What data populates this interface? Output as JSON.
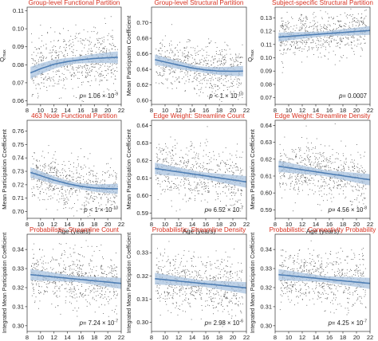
{
  "chart_data": [
    {
      "type": "scatter",
      "title": "Group-level Functional Partition",
      "xlabel": "",
      "ylabel": "Q",
      "ylabel_sub": "max",
      "xlim": [
        8,
        22
      ],
      "ylim": [
        0.058,
        0.112
      ],
      "xticks": [
        8,
        10,
        12,
        14,
        16,
        18,
        20,
        22
      ],
      "xtick_labels": [
        "8",
        "10",
        "12",
        "14",
        "16",
        "18",
        "20",
        "22"
      ],
      "yticks": [
        0.06,
        0.07,
        0.08,
        0.09,
        0.1,
        0.11
      ],
      "ytick_labels": [
        "0.06",
        "0.07",
        "0.08",
        "0.09",
        "0.10",
        "0.11"
      ],
      "fit": {
        "x": [
          8.5,
          10,
          12,
          14,
          16,
          18,
          20,
          21.5
        ],
        "y": [
          0.0755,
          0.0778,
          0.0803,
          0.0818,
          0.0828,
          0.0835,
          0.0839,
          0.0841
        ]
      },
      "scatter_spread": 0.008,
      "annotation": {
        "prefix": "p",
        "value": "= 1.06 × 10",
        "exp": "-9"
      }
    },
    {
      "type": "scatter",
      "title": "Group-level Structural Partition",
      "xlabel": "",
      "ylabel": "Mean Participation Coefficient",
      "xlim": [
        8,
        22
      ],
      "ylim": [
        0.595,
        0.72
      ],
      "xticks": [
        8,
        10,
        12,
        14,
        16,
        18,
        20,
        22
      ],
      "xtick_labels": [
        "8",
        "10",
        "12",
        "14",
        "16",
        "18",
        "20",
        "22"
      ],
      "yticks": [
        0.6,
        0.62,
        0.64,
        0.66,
        0.68,
        0.7
      ],
      "ytick_labels": [
        "0.60",
        "0.62",
        "0.64",
        "0.66",
        "0.68",
        "0.70"
      ],
      "fit": {
        "x": [
          8.5,
          10,
          12,
          14,
          16,
          18,
          20,
          21.5
        ],
        "y": [
          0.6525,
          0.6495,
          0.6455,
          0.6418,
          0.6392,
          0.6378,
          0.6376,
          0.6378
        ]
      },
      "scatter_spread": 0.016,
      "annotation": {
        "prefix": "p",
        "value": " < 1 × 10",
        "exp": "-10"
      }
    },
    {
      "type": "scatter",
      "title": "Subject-specific Structural Partition",
      "xlabel": "",
      "ylabel": "Q",
      "ylabel_sub": "max",
      "xlim": [
        8,
        22
      ],
      "ylim": [
        0.065,
        0.138
      ],
      "xticks": [
        8,
        10,
        12,
        14,
        16,
        18,
        20,
        22
      ],
      "xtick_labels": [
        "8",
        "10",
        "12",
        "14",
        "16",
        "18",
        "20",
        "22"
      ],
      "yticks": [
        0.07,
        0.08,
        0.09,
        0.1,
        0.11,
        0.12,
        0.13
      ],
      "ytick_labels": [
        "0.07",
        "0.08",
        "0.09",
        "0.10",
        "0.11",
        "0.12",
        "0.13"
      ],
      "fit": {
        "x": [
          8.5,
          22
        ],
        "y": [
          0.1155,
          0.1205
        ]
      },
      "scatter_spread": 0.008,
      "annotation": {
        "prefix": "p",
        "value": "= 0.0007",
        "exp": ""
      }
    },
    {
      "type": "scatter",
      "title": "463 Node Functional Partition",
      "xlabel": "Age (years)",
      "ylabel": "Mean Participation Coefficient",
      "xlim": [
        8,
        22
      ],
      "ylim": [
        0.695,
        0.768
      ],
      "xticks": [
        8,
        10,
        12,
        14,
        16,
        18,
        20,
        22
      ],
      "xtick_labels": [
        "8",
        "10",
        "12",
        "14",
        "16",
        "18",
        "20",
        "22"
      ],
      "yticks": [
        0.7,
        0.71,
        0.72,
        0.73,
        0.74,
        0.75,
        0.76
      ],
      "ytick_labels": [
        "0.70",
        "0.71",
        "0.72",
        "0.73",
        "0.74",
        "0.75",
        "0.76"
      ],
      "fit": {
        "x": [
          8.5,
          10,
          12,
          14,
          16,
          18,
          20,
          21.5
        ],
        "y": [
          0.7292,
          0.7268,
          0.7235,
          0.7208,
          0.7188,
          0.7176,
          0.7171,
          0.717
        ]
      },
      "scatter_spread": 0.009,
      "annotation": {
        "prefix": "p",
        "value": " < 1 × 10",
        "exp": "-10"
      }
    },
    {
      "type": "scatter",
      "title": "Edge Weight: Streamline Count",
      "xlabel": "Age (years)",
      "ylabel": "Mean Participation Coefficient",
      "xlim": [
        8,
        22
      ],
      "ylim": [
        0.587,
        0.643
      ],
      "xticks": [
        8,
        10,
        12,
        14,
        16,
        18,
        20,
        22
      ],
      "xtick_labels": [
        "8",
        "10",
        "12",
        "14",
        "16",
        "18",
        "20",
        "22"
      ],
      "yticks": [
        0.59,
        0.6,
        0.61,
        0.62,
        0.63,
        0.64
      ],
      "ytick_labels": [
        "0.59",
        "0.60",
        "0.61",
        "0.62",
        "0.63",
        "0.64"
      ],
      "fit": {
        "x": [
          8.5,
          22
        ],
        "y": [
          0.6155,
          0.6078
        ]
      },
      "scatter_spread": 0.008,
      "annotation": {
        "prefix": "p",
        "value": "= 6.52 × 10",
        "exp": "-7"
      }
    },
    {
      "type": "scatter",
      "title": "Edge Weight: Streamline Density",
      "xlabel": "Age (years)",
      "ylabel": "Mean Participation Coefficient",
      "xlim": [
        8,
        22
      ],
      "ylim": [
        0.585,
        0.643
      ],
      "xticks": [
        8,
        10,
        12,
        14,
        16,
        18,
        20,
        22
      ],
      "xtick_labels": [
        "8",
        "10",
        "12",
        "14",
        "16",
        "18",
        "20",
        "22"
      ],
      "yticks": [
        0.59,
        0.6,
        0.61,
        0.62,
        0.63,
        0.64
      ],
      "ytick_labels": [
        "0.59",
        "0.60",
        "0.61",
        "0.62",
        "0.63",
        "0.64"
      ],
      "fit": {
        "x": [
          8.5,
          22
        ],
        "y": [
          0.6158,
          0.6078
        ]
      },
      "scatter_spread": 0.008,
      "annotation": {
        "prefix": "p",
        "value": "= 4.56 × 10",
        "exp": "-8"
      }
    },
    {
      "type": "scatter",
      "title": "Probabilistic: Streamline Count",
      "xlabel": "Age (years)",
      "ylabel": "Integrated Mean Participation Coefficient",
      "xlim": [
        8,
        22
      ],
      "ylim": [
        0.297,
        0.348
      ],
      "xticks": [
        8,
        10,
        12,
        14,
        16,
        18,
        20,
        22
      ],
      "xtick_labels": [
        "8",
        "10",
        "12",
        "14",
        "16",
        "18",
        "20",
        "22"
      ],
      "yticks": [
        0.3,
        0.31,
        0.32,
        0.33,
        0.34
      ],
      "ytick_labels": [
        "0.30",
        "0.31",
        "0.32",
        "0.33",
        "0.34"
      ],
      "fit": {
        "x": [
          8.5,
          22
        ],
        "y": [
          0.3268,
          0.3222
        ]
      },
      "scatter_spread": 0.007,
      "annotation": {
        "prefix": "p",
        "value": "= 7.24 × 10",
        "exp": "-7"
      }
    },
    {
      "type": "scatter",
      "title": "Probabilistic: Streamline Density",
      "xlabel": "Age (years)",
      "ylabel": "Integrated Mean Participation Coefficient",
      "xlim": [
        8,
        22
      ],
      "ylim": [
        0.296,
        0.338
      ],
      "xticks": [
        8,
        10,
        12,
        14,
        16,
        18,
        20,
        22
      ],
      "xtick_labels": [
        "8",
        "10",
        "12",
        "14",
        "16",
        "18",
        "20",
        "22"
      ],
      "yticks": [
        0.3,
        0.31,
        0.32,
        0.33
      ],
      "ytick_labels": [
        "0.30",
        "0.31",
        "0.32",
        "0.33"
      ],
      "fit": {
        "x": [
          8.5,
          22
        ],
        "y": [
          0.3188,
          0.3148
        ]
      },
      "scatter_spread": 0.006,
      "annotation": {
        "prefix": "p",
        "value": "= 2.98 × 10",
        "exp": "-6"
      }
    },
    {
      "type": "scatter",
      "title": "Probabilistic: Connectivity Probability",
      "xlabel": "Age (years)",
      "ylabel": "Integrated Mean Participation Coefficient",
      "xlim": [
        8,
        22
      ],
      "ylim": [
        0.297,
        0.348
      ],
      "xticks": [
        8,
        10,
        12,
        14,
        16,
        18,
        20,
        22
      ],
      "xtick_labels": [
        "8",
        "10",
        "12",
        "14",
        "16",
        "18",
        "20",
        "22"
      ],
      "yticks": [
        0.3,
        0.31,
        0.32,
        0.33,
        0.34
      ],
      "ytick_labels": [
        "0.30",
        "0.31",
        "0.32",
        "0.33",
        "0.34"
      ],
      "fit": {
        "x": [
          8.5,
          22
        ],
        "y": [
          0.3268,
          0.3222
        ]
      },
      "scatter_spread": 0.007,
      "annotation": {
        "prefix": "p",
        "value": "= 4.25 × 10",
        "exp": "-7"
      }
    }
  ],
  "style": {
    "title_color": "#d7301f",
    "point_color": "#5a5a5a",
    "fit_color": "#4f7fb5",
    "band_color": "#a9c3df",
    "axis_color": "#333333",
    "text_color": "#222222"
  }
}
